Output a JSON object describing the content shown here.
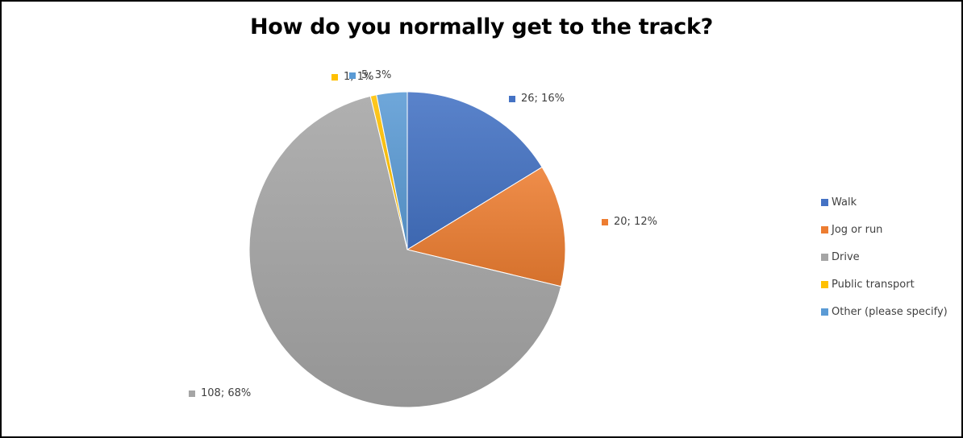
{
  "chart_data": {
    "type": "pie",
    "title": "How do you normally get to the track?",
    "categories": [
      "Walk",
      "Jog or run",
      "Drive",
      "Public transport",
      "Other (please specify)"
    ],
    "values": [
      26,
      20,
      108,
      1,
      5
    ],
    "percents": [
      16,
      12,
      68,
      1,
      3
    ],
    "data_labels": [
      "26; 16%",
      "20; 12%",
      "108; 68%",
      "1; 1%",
      "5; 3%"
    ],
    "colors": [
      "#4472C4",
      "#ED7D31",
      "#A5A5A5",
      "#FFC000",
      "#5B9BD5"
    ],
    "legend_position": "right",
    "start_angle_deg": 0,
    "direction": "clockwise"
  }
}
